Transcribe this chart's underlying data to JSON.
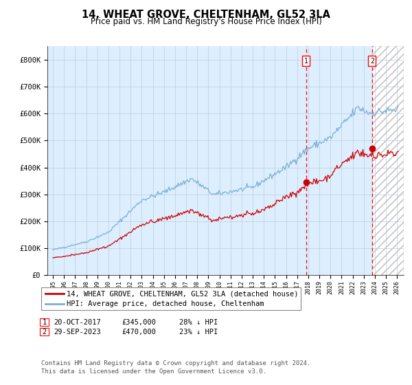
{
  "title": "14, WHEAT GROVE, CHELTENHAM, GL52 3LA",
  "subtitle": "Price paid vs. HM Land Registry's House Price Index (HPI)",
  "ylim": [
    0,
    850000
  ],
  "yticks": [
    0,
    100000,
    200000,
    300000,
    400000,
    500000,
    600000,
    700000,
    800000
  ],
  "ytick_labels": [
    "£0",
    "£100K",
    "£200K",
    "£300K",
    "£400K",
    "£500K",
    "£600K",
    "£700K",
    "£800K"
  ],
  "hpi_color": "#7bafd4",
  "price_color": "#cc0000",
  "background_color": "#ffffff",
  "plot_bg_color": "#ddeeff",
  "grid_color": "#bbccdd",
  "sale1_date": 2017.8,
  "sale1_price": 345000,
  "sale2_date": 2023.74,
  "sale2_price": 470000,
  "legend_line1": "14, WHEAT GROVE, CHELTENHAM, GL52 3LA (detached house)",
  "legend_line2": "HPI: Average price, detached house, Cheltenham",
  "note1_label": "1",
  "note1_date": "20-OCT-2017",
  "note1_price": "£345,000",
  "note1_pct": "28% ↓ HPI",
  "note2_label": "2",
  "note2_date": "29-SEP-2023",
  "note2_price": "£470,000",
  "note2_pct": "23% ↓ HPI",
  "footnote1": "Contains HM Land Registry data © Crown copyright and database right 2024.",
  "footnote2": "This data is licensed under the Open Government Licence v3.0."
}
